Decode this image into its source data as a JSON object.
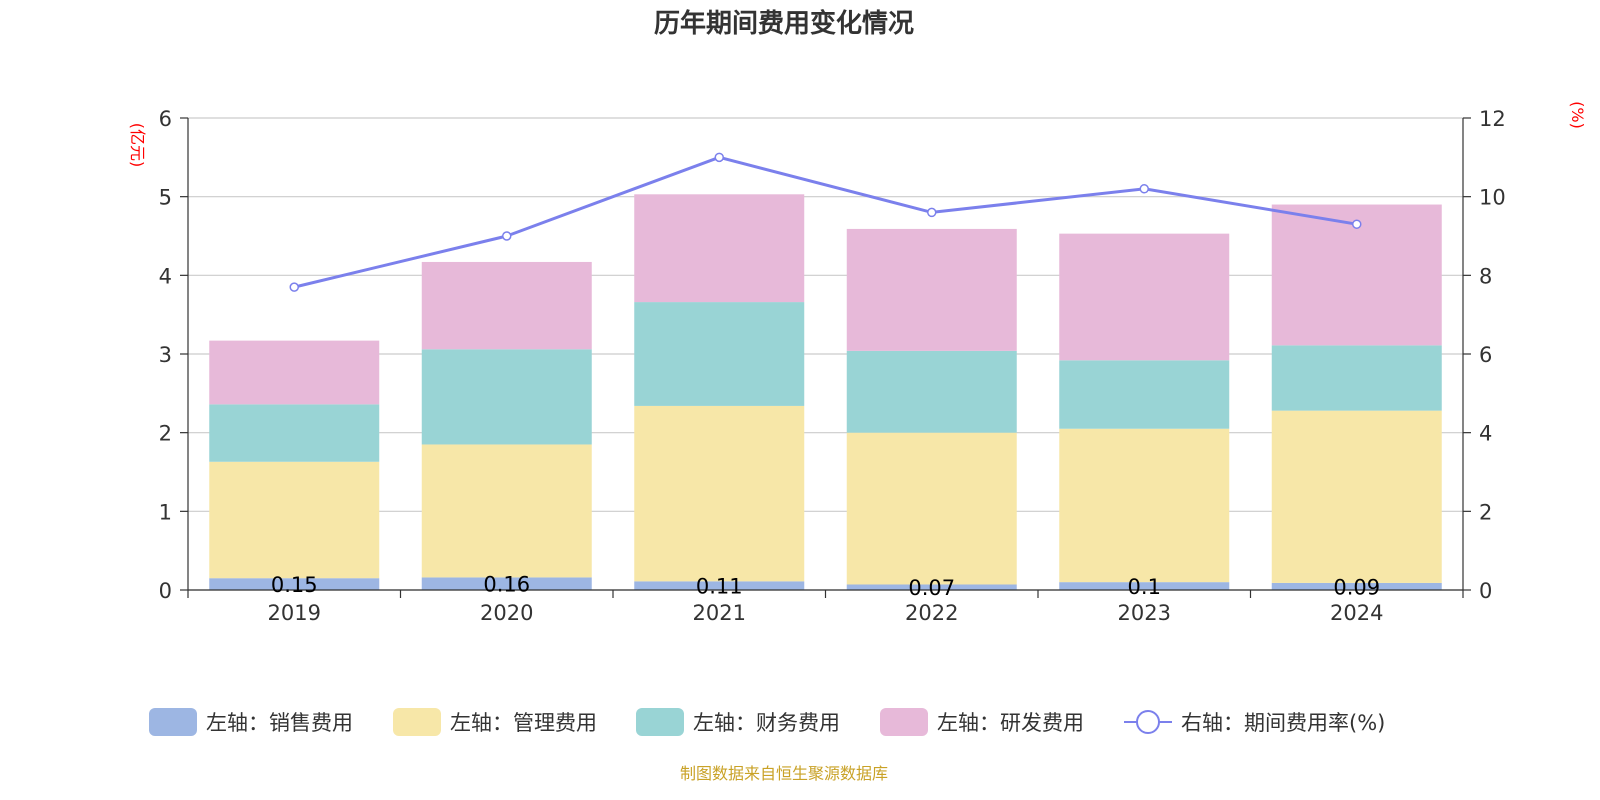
{
  "chart_data": {
    "type": "bar",
    "title": "历年期间费用变化情况",
    "left_unit": "(亿元)",
    "right_unit": "(%)",
    "categories": [
      "2019",
      "2020",
      "2021",
      "2022",
      "2023",
      "2024"
    ],
    "ylim_left": [
      0,
      6
    ],
    "yticks_left": [
      "0",
      "1",
      "2",
      "3",
      "4",
      "5",
      "6"
    ],
    "ylim_right": [
      0,
      12
    ],
    "yticks_right": [
      "0",
      "2",
      "4",
      "6",
      "8",
      "10",
      "12"
    ],
    "grid": true,
    "stacked": true,
    "series": [
      {
        "name": "左轴：销售费用",
        "axis": "left",
        "type": "bar",
        "color": "#9db6e3",
        "values": [
          0.15,
          0.16,
          0.11,
          0.07,
          0.1,
          0.09
        ],
        "labels": [
          "0.15",
          "0.16",
          "0.11",
          "0.07",
          "0.1",
          "0.09"
        ]
      },
      {
        "name": "左轴：管理费用",
        "axis": "left",
        "type": "bar",
        "color": "#f7e7a8",
        "values": [
          1.48,
          1.69,
          2.23,
          1.93,
          1.95,
          2.19
        ]
      },
      {
        "name": "左轴：财务费用",
        "axis": "left",
        "type": "bar",
        "color": "#99d4d5",
        "values": [
          0.73,
          1.21,
          1.32,
          1.04,
          0.87,
          0.83
        ]
      },
      {
        "name": "左轴：研发费用",
        "axis": "left",
        "type": "bar",
        "color": "#e7b9d9",
        "values": [
          0.81,
          1.11,
          1.37,
          1.55,
          1.61,
          1.79
        ]
      },
      {
        "name": "右轴：期间费用率(%)",
        "axis": "right",
        "type": "line",
        "color": "#7b80ec",
        "values": [
          7.7,
          9.0,
          11.0,
          9.6,
          10.2,
          9.3
        ]
      }
    ],
    "legend_position": "bottom",
    "source_note": "制图数据来自恒生聚源数据库"
  }
}
